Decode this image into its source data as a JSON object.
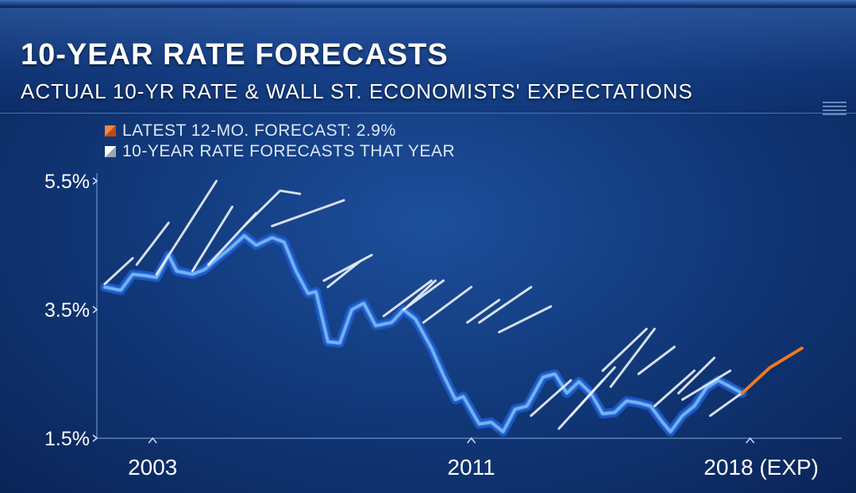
{
  "header": {
    "title": "10-YEAR RATE FORECASTS",
    "subtitle": "ACTUAL 10-YR RATE & WALL ST. ECONOMISTS' EXPECTATIONS"
  },
  "colors": {
    "actual_line": "#6fb3f5",
    "actual_fill": "#1c56c8",
    "forecast_line": "#e8eef6",
    "latest_forecast": "#f07a22",
    "text": "#ffffff"
  },
  "chart_data": {
    "type": "line",
    "title": "10-YEAR RATE FORECASTS",
    "ylabel": "",
    "xlabel": "",
    "ylim": [
      1.5,
      5.5
    ],
    "xlim": [
      2001.6,
      2020.2
    ],
    "grid": false,
    "y_ticks": [
      "5.5%",
      "3.5%",
      "1.5%"
    ],
    "y_tick_values": [
      5.5,
      3.5,
      1.5
    ],
    "x_ticks": [
      "2003",
      "2011",
      "2018 (EXP)"
    ],
    "x_tick_values": [
      2003,
      2011,
      2018
    ],
    "legend": [
      {
        "label": "LATEST 12-MO. FORECAST: 2.9%",
        "color": "#f07a22"
      },
      {
        "label": "10-YEAR RATE FORECASTS THAT YEAR",
        "color": "#e8eef6"
      }
    ],
    "actual": {
      "name": "Actual 10-yr rate",
      "x": [
        2001.8,
        2002.2,
        2002.5,
        2002.8,
        2003.1,
        2003.4,
        2003.6,
        2004.0,
        2004.3,
        2004.6,
        2005.0,
        2005.3,
        2005.6,
        2006.0,
        2006.3,
        2006.6,
        2006.9,
        2007.1,
        2007.4,
        2007.7,
        2008.0,
        2008.3,
        2008.6,
        2009.0,
        2009.3,
        2009.6,
        2010.0,
        2010.3,
        2010.6,
        2010.8,
        2011.2,
        2011.5,
        2011.8,
        2012.1,
        2012.4,
        2012.8,
        2013.1,
        2013.4,
        2013.7,
        2014.0,
        2014.3,
        2014.6,
        2014.9,
        2015.2,
        2015.5,
        2015.8,
        2016.0,
        2016.3,
        2016.6,
        2016.9,
        2017.2,
        2017.5,
        2017.8
      ],
      "values": [
        3.85,
        3.8,
        4.05,
        4.03,
        4.0,
        4.35,
        4.1,
        4.05,
        4.12,
        4.28,
        4.48,
        4.65,
        4.5,
        4.62,
        4.55,
        4.1,
        3.75,
        3.78,
        3.0,
        2.98,
        3.5,
        3.6,
        3.25,
        3.3,
        3.5,
        3.35,
        2.9,
        2.48,
        2.1,
        2.15,
        1.72,
        1.75,
        1.6,
        1.95,
        2.0,
        2.45,
        2.5,
        2.2,
        2.38,
        2.2,
        1.88,
        1.9,
        2.08,
        2.05,
        2.0,
        1.75,
        1.6,
        1.85,
        2.0,
        2.28,
        2.4,
        2.3,
        2.2
      ],
      "fill": "#1c56c8",
      "color": "#6fb3f5"
    },
    "latest_forecast": {
      "name": "Latest 12-mo. forecast",
      "x": [
        2017.8,
        2018.5,
        2019.3
      ],
      "values": [
        2.2,
        2.6,
        2.9
      ],
      "color": "#f07a22"
    },
    "forecasts": [
      {
        "x": [
          2001.8,
          2002.5
        ],
        "values": [
          3.9,
          4.3
        ]
      },
      {
        "x": [
          2002.6,
          2003.4
        ],
        "values": [
          4.2,
          4.85
        ]
      },
      {
        "x": [
          2003.1,
          2004.6
        ],
        "values": [
          4.05,
          5.5
        ]
      },
      {
        "x": [
          2004.0,
          2005.0
        ],
        "values": [
          4.1,
          5.1
        ]
      },
      {
        "x": [
          2004.4,
          2005.6
        ],
        "values": [
          4.2,
          5.0
        ]
      },
      {
        "x": [
          2005.3,
          2006.2,
          2006.7
        ],
        "values": [
          4.8,
          5.35,
          5.3
        ]
      },
      {
        "x": [
          2006.0,
          2006.9,
          2007.8
        ],
        "values": [
          4.8,
          5.0,
          5.2
        ]
      },
      {
        "x": [
          2007.3,
          2008.5
        ],
        "values": [
          3.95,
          4.35
        ]
      },
      {
        "x": [
          2007.4,
          2008.2
        ],
        "values": [
          3.85,
          4.25
        ]
      },
      {
        "x": [
          2008.8,
          2010.0
        ],
        "values": [
          3.4,
          3.95
        ]
      },
      {
        "x": [
          2009.4,
          2010.1
        ],
        "values": [
          3.55,
          3.95
        ]
      },
      {
        "x": [
          2009.3,
          2010.3
        ],
        "values": [
          3.5,
          3.95
        ]
      },
      {
        "x": [
          2009.8,
          2011.0
        ],
        "values": [
          3.3,
          3.85
        ]
      },
      {
        "x": [
          2010.9,
          2011.7
        ],
        "values": [
          3.3,
          3.65
        ]
      },
      {
        "x": [
          2011.2,
          2012.5
        ],
        "values": [
          3.3,
          3.85
        ]
      },
      {
        "x": [
          2011.7,
          2013.0
        ],
        "values": [
          3.15,
          3.55
        ]
      },
      {
        "x": [
          2012.5,
          2013.5
        ],
        "values": [
          1.85,
          2.4
        ]
      },
      {
        "x": [
          2013.2,
          2014.3
        ],
        "values": [
          1.65,
          2.4
        ]
      },
      {
        "x": [
          2013.5,
          2014.6
        ],
        "values": [
          1.85,
          2.6
        ]
      },
      {
        "x": [
          2014.3,
          2015.4
        ],
        "values": [
          2.55,
          3.2
        ]
      },
      {
        "x": [
          2014.5,
          2015.6
        ],
        "values": [
          2.3,
          3.2
        ]
      },
      {
        "x": [
          2015.2,
          2016.1
        ],
        "values": [
          2.5,
          2.92
        ]
      },
      {
        "x": [
          2015.6,
          2016.6
        ],
        "values": [
          2.0,
          2.55
        ]
      },
      {
        "x": [
          2016.2,
          2017.1
        ],
        "values": [
          2.2,
          2.75
        ]
      },
      {
        "x": [
          2016.3,
          2017.5
        ],
        "values": [
          2.1,
          2.55
        ]
      },
      {
        "x": [
          2017.0,
          2017.9
        ],
        "values": [
          1.85,
          2.25
        ]
      }
    ]
  }
}
